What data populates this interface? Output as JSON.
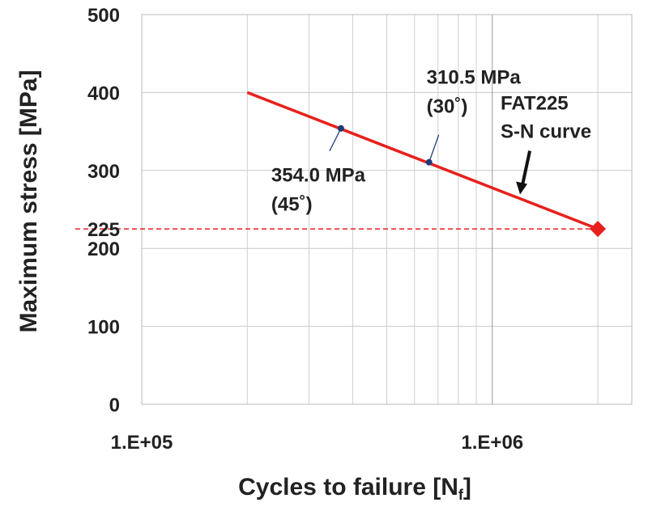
{
  "chart_data": {
    "type": "line",
    "title": "",
    "xlabel": "Cycles to failure [N",
    "xlabel_sub": "f",
    "xlabel_close": "]",
    "ylabel": "Maximum stress [MPa]",
    "x_scale": "log",
    "xlim": [
      100000,
      2500000
    ],
    "ylim": [
      0,
      500
    ],
    "grid": true,
    "y_ticks": [
      {
        "value": 0,
        "label": "0"
      },
      {
        "value": 100,
        "label": "100"
      },
      {
        "value": 200,
        "label": "200"
      },
      {
        "value": 300,
        "label": "300"
      },
      {
        "value": 400,
        "label": "400"
      },
      {
        "value": 500,
        "label": "500"
      }
    ],
    "x_ticks": [
      {
        "value": 100000,
        "label": "1.E+05"
      },
      {
        "value": 1000000,
        "label": "1.E+06"
      }
    ],
    "x_minor_gridlines": [
      200000,
      300000,
      400000,
      500000,
      600000,
      700000,
      800000,
      900000,
      2000000
    ],
    "series": [
      {
        "name": "FAT225 S-N curve",
        "color": "#e8201c",
        "points": [
          {
            "x": 200000,
            "y": 400
          },
          {
            "x": 2000000,
            "y": 225
          }
        ],
        "end_marker": "diamond"
      }
    ],
    "reference_line": {
      "y": 225,
      "label": "225",
      "color": "#e8201c",
      "style": "dashed",
      "x_end": 2000000
    },
    "points": [
      {
        "x": 370000,
        "y": 354.0,
        "color": "#1f3a7a",
        "label_line1": "354.0 MPa",
        "label_line2": "(45˚)"
      },
      {
        "x": 660000,
        "y": 310.5,
        "color": "#1f3a7a",
        "label_line1": "310.5 MPa",
        "label_line2": "(30˚)"
      }
    ],
    "annotations": [
      {
        "text_line1": "FAT225",
        "text_line2": "S-N curve",
        "target_x": 1200000,
        "target_y": 265
      }
    ]
  }
}
